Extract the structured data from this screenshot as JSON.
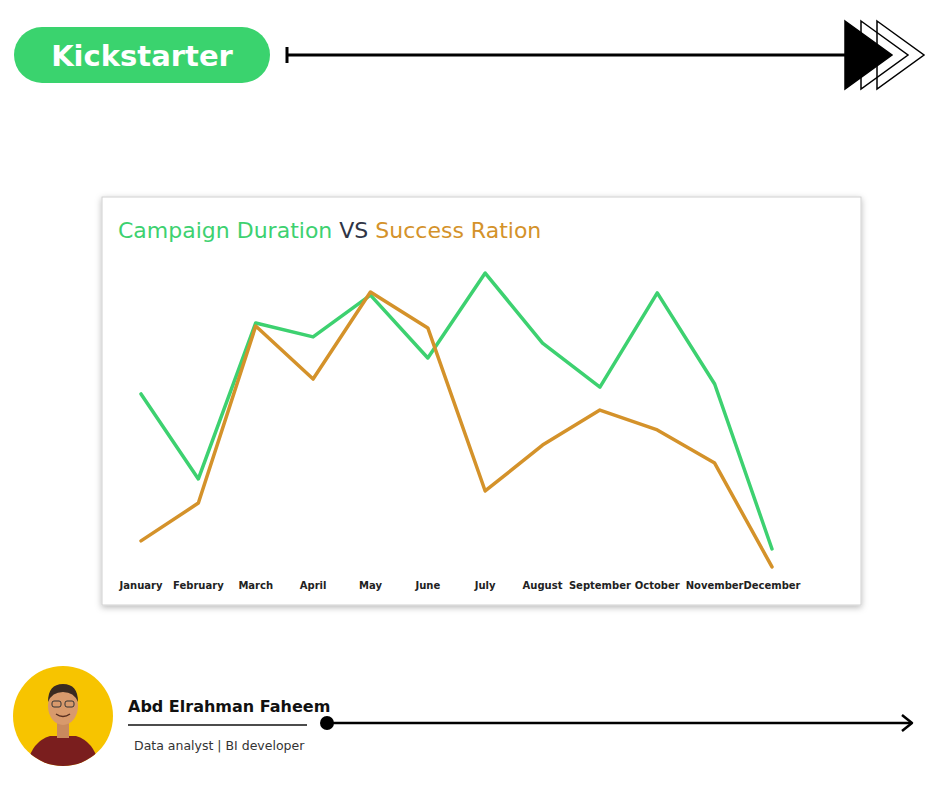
{
  "header": {
    "brand": "Kickstarter"
  },
  "chart_data": {
    "type": "line",
    "title": "Campaign Duration VS Success Ration",
    "categories": [
      "January",
      "February",
      "March",
      "April",
      "May",
      "June",
      "July",
      "August",
      "September",
      "October",
      "November",
      "December"
    ],
    "series": [
      {
        "name": "Campaign Duration",
        "color": "#3dd170",
        "values": [
          58.4,
          31.0,
          81.3,
          76.8,
          90.3,
          70.0,
          97.4,
          74.8,
          60.6,
          91.0,
          61.6,
          8.4
        ]
      },
      {
        "name": "Success Ration",
        "color": "#d4922a",
        "values": [
          11.0,
          23.2,
          80.3,
          63.2,
          91.3,
          79.7,
          27.1,
          41.9,
          53.2,
          46.8,
          36.1,
          2.6
        ]
      }
    ],
    "ylim": [
      0,
      100
    ],
    "grid": false,
    "tick_labels": "x"
  },
  "author": {
    "name": "Abd Elrahman Faheem",
    "role": "Data analyst | BI developer"
  }
}
